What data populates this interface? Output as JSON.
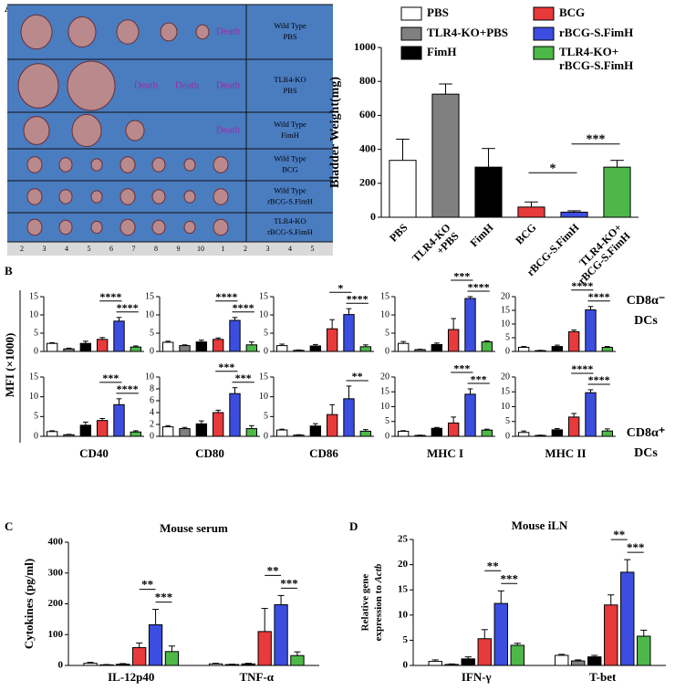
{
  "panel_labels": [
    "A",
    "B",
    "C",
    "D"
  ],
  "mfi_label": "MFI (×1000)",
  "row_labels": [
    [
      "CD8α⁻",
      "DCs"
    ],
    [
      "CD8α⁺",
      "DCs"
    ]
  ],
  "photo": {
    "rows": [
      {
        "label": [
          "Wild Type",
          "PBS"
        ],
        "deaths": [
          "Death"
        ]
      },
      {
        "label": [
          "TLR4-KO",
          "PBS"
        ],
        "deaths": [
          "Death",
          "Death",
          "Death"
        ]
      },
      {
        "label": [
          "Wild Type",
          "FimH"
        ],
        "deaths": [
          "Death"
        ]
      },
      {
        "label": [
          "Wild Type",
          "BCG"
        ]
      },
      {
        "label": [
          "Wild Type",
          "rBCG-S.FimH"
        ]
      },
      {
        "label": [
          "TLR4-KO",
          "rBCG-S.FimH"
        ]
      }
    ],
    "ruler": [
      "2",
      "3",
      "4",
      "5",
      "6",
      "7",
      "8",
      "9",
      "10",
      "1",
      "2",
      "3",
      "4",
      "5"
    ]
  },
  "chart_data": [
    {
      "type": "bar",
      "ylabel": "Bladder Weight(mg)",
      "categories": [
        "PBS",
        [
          "TLR4-KO",
          "+PBS"
        ],
        "FimH",
        "BCG",
        "rBCG-S.FimH",
        [
          "TLR4-KO+",
          "rBCG-S.FimH"
        ]
      ],
      "legend_labels": [
        "PBS",
        "TLR4-KO+PBS",
        "FimH",
        "BCG",
        "rBCG-S.FimH",
        [
          "TLR4-KO+",
          "rBCG-S.FimH"
        ]
      ],
      "values": [
        335,
        725,
        295,
        60,
        30,
        295
      ],
      "errors": [
        125,
        60,
        110,
        30,
        8,
        40
      ],
      "colors": [
        "#ffffff",
        "#808080",
        "#000000",
        "#e8393b",
        "#3b4ee0",
        "#4db848"
      ],
      "ylim": [
        0,
        1000
      ],
      "yticks": [
        0,
        200,
        400,
        600,
        800,
        1000
      ],
      "annotations": [
        "*",
        "***"
      ]
    },
    {
      "type": "bar",
      "values": [
        2.2,
        0.7,
        2.2,
        3.3,
        8.3,
        1.2
      ],
      "errors": [
        0.2,
        0.2,
        0.6,
        0.5,
        1,
        0.3
      ],
      "colors": [
        "#ffffff",
        "#808080",
        "#000000",
        "#e8393b",
        "#3b4ee0",
        "#4db848"
      ],
      "ylim": [
        0,
        15
      ],
      "yticks": [
        0,
        5,
        10,
        15
      ],
      "annotations": [
        "****",
        "****"
      ]
    },
    {
      "type": "bar",
      "values": [
        2.5,
        1.6,
        2.6,
        3.3,
        8.5,
        1.8
      ],
      "errors": [
        0.3,
        0.2,
        0.5,
        0.4,
        0.8,
        0.8
      ],
      "colors": [
        "#ffffff",
        "#808080",
        "#000000",
        "#e8393b",
        "#3b4ee0",
        "#4db848"
      ],
      "ylim": [
        0,
        15
      ],
      "yticks": [
        0,
        5,
        10,
        15
      ],
      "annotations": [
        "****",
        "****"
      ]
    },
    {
      "type": "bar",
      "values": [
        1.6,
        0.3,
        1.5,
        6.2,
        10.1,
        1.3
      ],
      "errors": [
        0.4,
        0.1,
        0.4,
        2.5,
        1.6,
        0.5
      ],
      "colors": [
        "#ffffff",
        "#808080",
        "#000000",
        "#e8393b",
        "#3b4ee0",
        "#4db848"
      ],
      "ylim": [
        0,
        15
      ],
      "yticks": [
        0,
        5,
        10,
        15
      ],
      "annotations": [
        "*",
        "****"
      ]
    },
    {
      "type": "bar",
      "values": [
        2.2,
        0.5,
        1.9,
        6,
        14.5,
        2.6
      ],
      "errors": [
        0.5,
        0.1,
        0.4,
        3,
        0.5,
        0.3
      ],
      "colors": [
        "#ffffff",
        "#808080",
        "#000000",
        "#e8393b",
        "#3b4ee0",
        "#4db848"
      ],
      "ylim": [
        0,
        15
      ],
      "yticks": [
        0,
        5,
        10,
        15
      ],
      "annotations": [
        "***",
        "****"
      ]
    },
    {
      "type": "bar",
      "values": [
        1.5,
        0.3,
        1.8,
        7.2,
        15.2,
        1.5
      ],
      "errors": [
        0.3,
        0.1,
        0.5,
        0.6,
        1.2,
        0.3
      ],
      "colors": [
        "#ffffff",
        "#808080",
        "#000000",
        "#e8393b",
        "#3b4ee0",
        "#4db848"
      ],
      "ylim": [
        0,
        20
      ],
      "yticks": [
        0,
        5,
        10,
        15,
        20
      ],
      "annotations": [
        "****",
        "****"
      ]
    },
    {
      "type": "bar",
      "xlabel": "CD40",
      "values": [
        1.2,
        0.4,
        2.8,
        4,
        8,
        1.1
      ],
      "errors": [
        0.2,
        0.1,
        0.8,
        0.5,
        1.5,
        0.3
      ],
      "colors": [
        "#ffffff",
        "#808080",
        "#000000",
        "#e8393b",
        "#3b4ee0",
        "#4db848"
      ],
      "ylim": [
        0,
        15
      ],
      "yticks": [
        0,
        5,
        10,
        15
      ],
      "annotations": [
        "***",
        "****"
      ]
    },
    {
      "type": "bar",
      "xlabel": "CD80",
      "values": [
        1.6,
        1.3,
        2.1,
        4,
        7.2,
        1.3
      ],
      "errors": [
        0.2,
        0.2,
        0.5,
        0.4,
        1,
        0.5
      ],
      "colors": [
        "#ffffff",
        "#808080",
        "#000000",
        "#e8393b",
        "#3b4ee0",
        "#4db848"
      ],
      "ylim": [
        0,
        10
      ],
      "yticks": [
        0,
        2,
        4,
        6,
        8,
        10
      ],
      "annotations": [
        "***",
        "***"
      ]
    },
    {
      "type": "bar",
      "xlabel": "CD86",
      "values": [
        1.6,
        0.3,
        2.6,
        5.5,
        9.5,
        1.3
      ],
      "errors": [
        0.2,
        0.1,
        0.6,
        2.5,
        3.2,
        0.4
      ],
      "colors": [
        "#ffffff",
        "#808080",
        "#000000",
        "#e8393b",
        "#3b4ee0",
        "#4db848"
      ],
      "ylim": [
        0,
        15
      ],
      "yticks": [
        0,
        5,
        10,
        15
      ],
      "annotations": [
        "**"
      ]
    },
    {
      "type": "bar",
      "xlabel": "MHC I",
      "values": [
        1.7,
        0.3,
        2.7,
        4.5,
        14.2,
        2.1
      ],
      "errors": [
        0.2,
        0.1,
        0.3,
        2,
        1.8,
        0.3
      ],
      "colors": [
        "#ffffff",
        "#808080",
        "#000000",
        "#e8393b",
        "#3b4ee0",
        "#4db848"
      ],
      "ylim": [
        0,
        20
      ],
      "yticks": [
        0,
        5,
        10,
        15,
        20
      ],
      "annotations": [
        "***",
        "***"
      ]
    },
    {
      "type": "bar",
      "xlabel": "MHC II",
      "values": [
        1.3,
        0.3,
        2.2,
        6.5,
        14.7,
        1.8
      ],
      "errors": [
        0.5,
        0.1,
        0.4,
        1.2,
        1,
        0.7
      ],
      "colors": [
        "#ffffff",
        "#808080",
        "#000000",
        "#e8393b",
        "#3b4ee0",
        "#4db848"
      ],
      "ylim": [
        0,
        20
      ],
      "yticks": [
        0,
        5,
        10,
        15,
        20
      ],
      "annotations": [
        "****",
        "****"
      ]
    },
    {
      "type": "grouped_bar",
      "title": "Mouse serum",
      "ylabel": "Cytokines (pg/ml)",
      "categories": [
        "IL-12p40",
        "TNF-α"
      ],
      "series": [
        {
          "color": "#ffffff",
          "values": [
            7,
            5
          ],
          "errors": [
            3,
            2
          ]
        },
        {
          "color": "#808080",
          "values": [
            2,
            3
          ],
          "errors": [
            1,
            1
          ]
        },
        {
          "color": "#000000",
          "values": [
            4,
            5
          ],
          "errors": [
            2,
            2
          ]
        },
        {
          "color": "#e8393b",
          "values": [
            58,
            110
          ],
          "errors": [
            15,
            75
          ]
        },
        {
          "color": "#3b4ee0",
          "values": [
            132,
            197
          ],
          "errors": [
            50,
            30
          ]
        },
        {
          "color": "#4db848",
          "values": [
            45,
            32
          ],
          "errors": [
            18,
            12
          ]
        }
      ],
      "ylim": [
        0,
        400
      ],
      "yticks": [
        0,
        100,
        200,
        300,
        400
      ],
      "annotations": [
        [
          "**",
          "***"
        ],
        [
          "**",
          "***"
        ]
      ]
    },
    {
      "type": "grouped_bar",
      "title": "Mouse iLN",
      "ylabel": [
        "Relative gene",
        "expression to ",
        "Actb"
      ],
      "categories": [
        "IFN-γ",
        "T-bet"
      ],
      "series": [
        {
          "color": "#ffffff",
          "values": [
            0.8,
            2
          ],
          "errors": [
            0.3,
            0.2
          ]
        },
        {
          "color": "#808080",
          "values": [
            0.2,
            0.9
          ],
          "errors": [
            0.1,
            0.2
          ]
        },
        {
          "color": "#000000",
          "values": [
            1.3,
            1.7
          ],
          "errors": [
            0.4,
            0.3
          ]
        },
        {
          "color": "#e8393b",
          "values": [
            5.3,
            12
          ],
          "errors": [
            1.8,
            2
          ]
        },
        {
          "color": "#3b4ee0",
          "values": [
            12.3,
            18.5
          ],
          "errors": [
            2.5,
            2.5
          ]
        },
        {
          "color": "#4db848",
          "values": [
            4,
            5.8
          ],
          "errors": [
            0.4,
            1.2
          ]
        }
      ],
      "ylim": [
        0,
        25
      ],
      "yticks": [
        0,
        5,
        10,
        15,
        20,
        25
      ],
      "annotations": [
        [
          "**",
          "***"
        ],
        [
          "**",
          "***"
        ]
      ]
    }
  ]
}
